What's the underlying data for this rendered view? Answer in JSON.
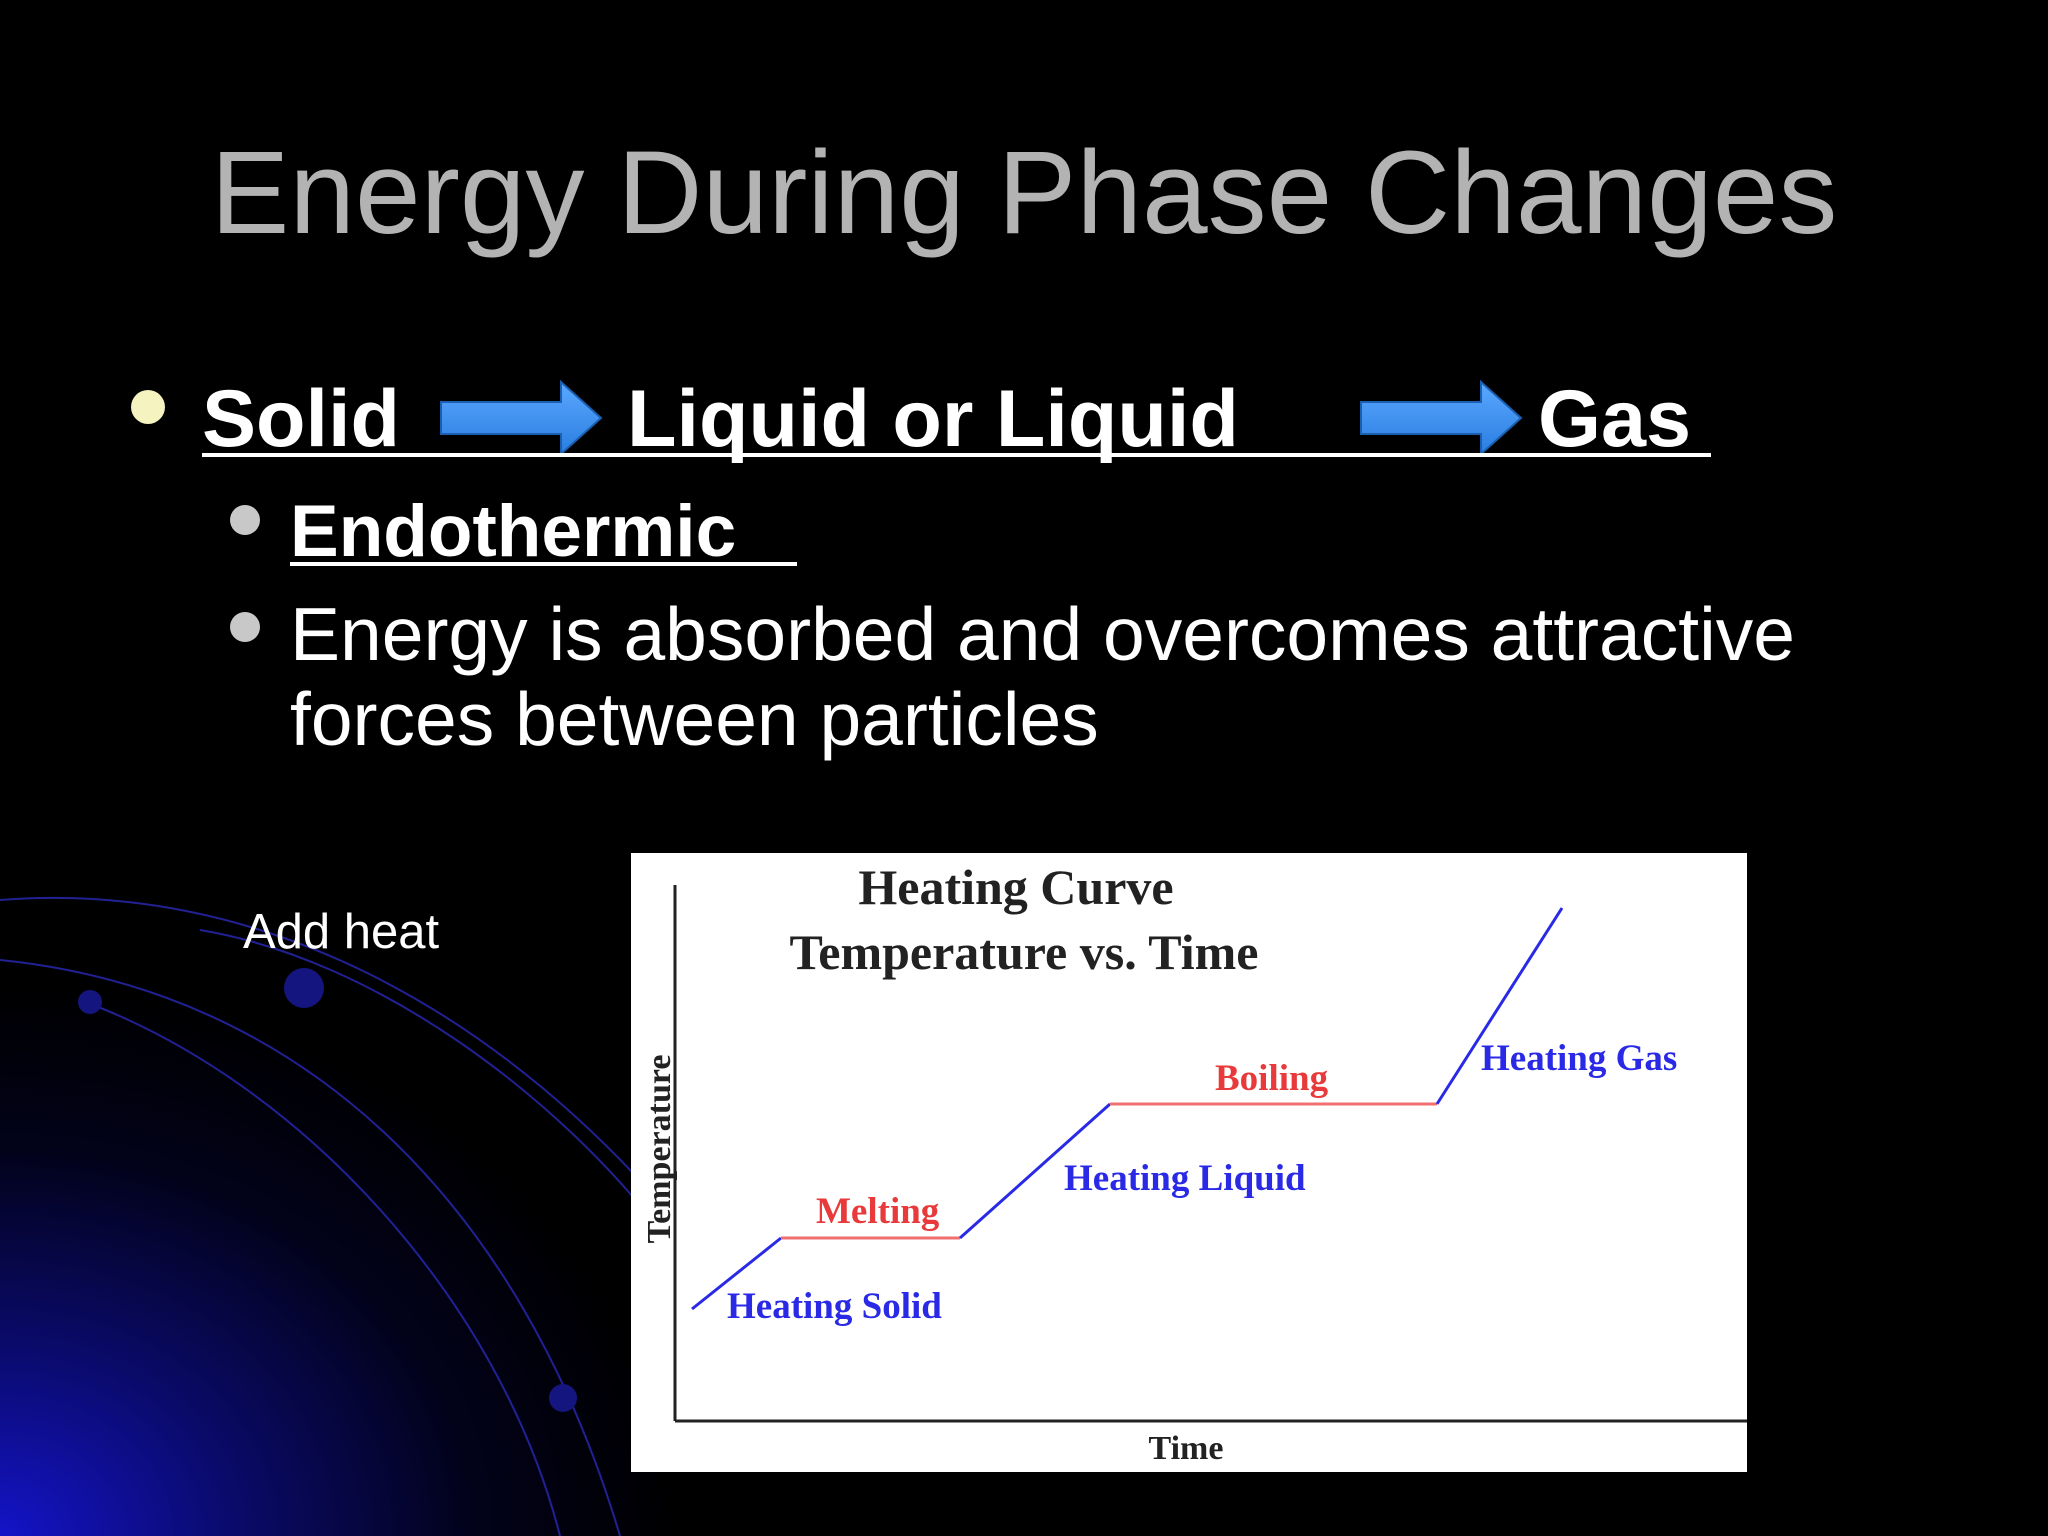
{
  "title": "Energy During Phase Changes",
  "bullet": {
    "parts": [
      "Solid",
      "Liquid or  Liquid",
      "Gas"
    ]
  },
  "sub_bullets": {
    "heading": "Endothermic",
    "text_lines": [
      "Energy is absorbed and overcomes attractive",
      "forces between particles"
    ]
  },
  "note": "Add heat",
  "figure": {
    "title_lines": [
      "Heating Curve",
      "Temperature vs. Time"
    ],
    "y_label": "Temperature",
    "x_label": "Time",
    "labels": [
      "Heating Solid",
      "Melting",
      "Heating Liquid",
      "Boiling",
      "Heating Gas"
    ]
  }
}
